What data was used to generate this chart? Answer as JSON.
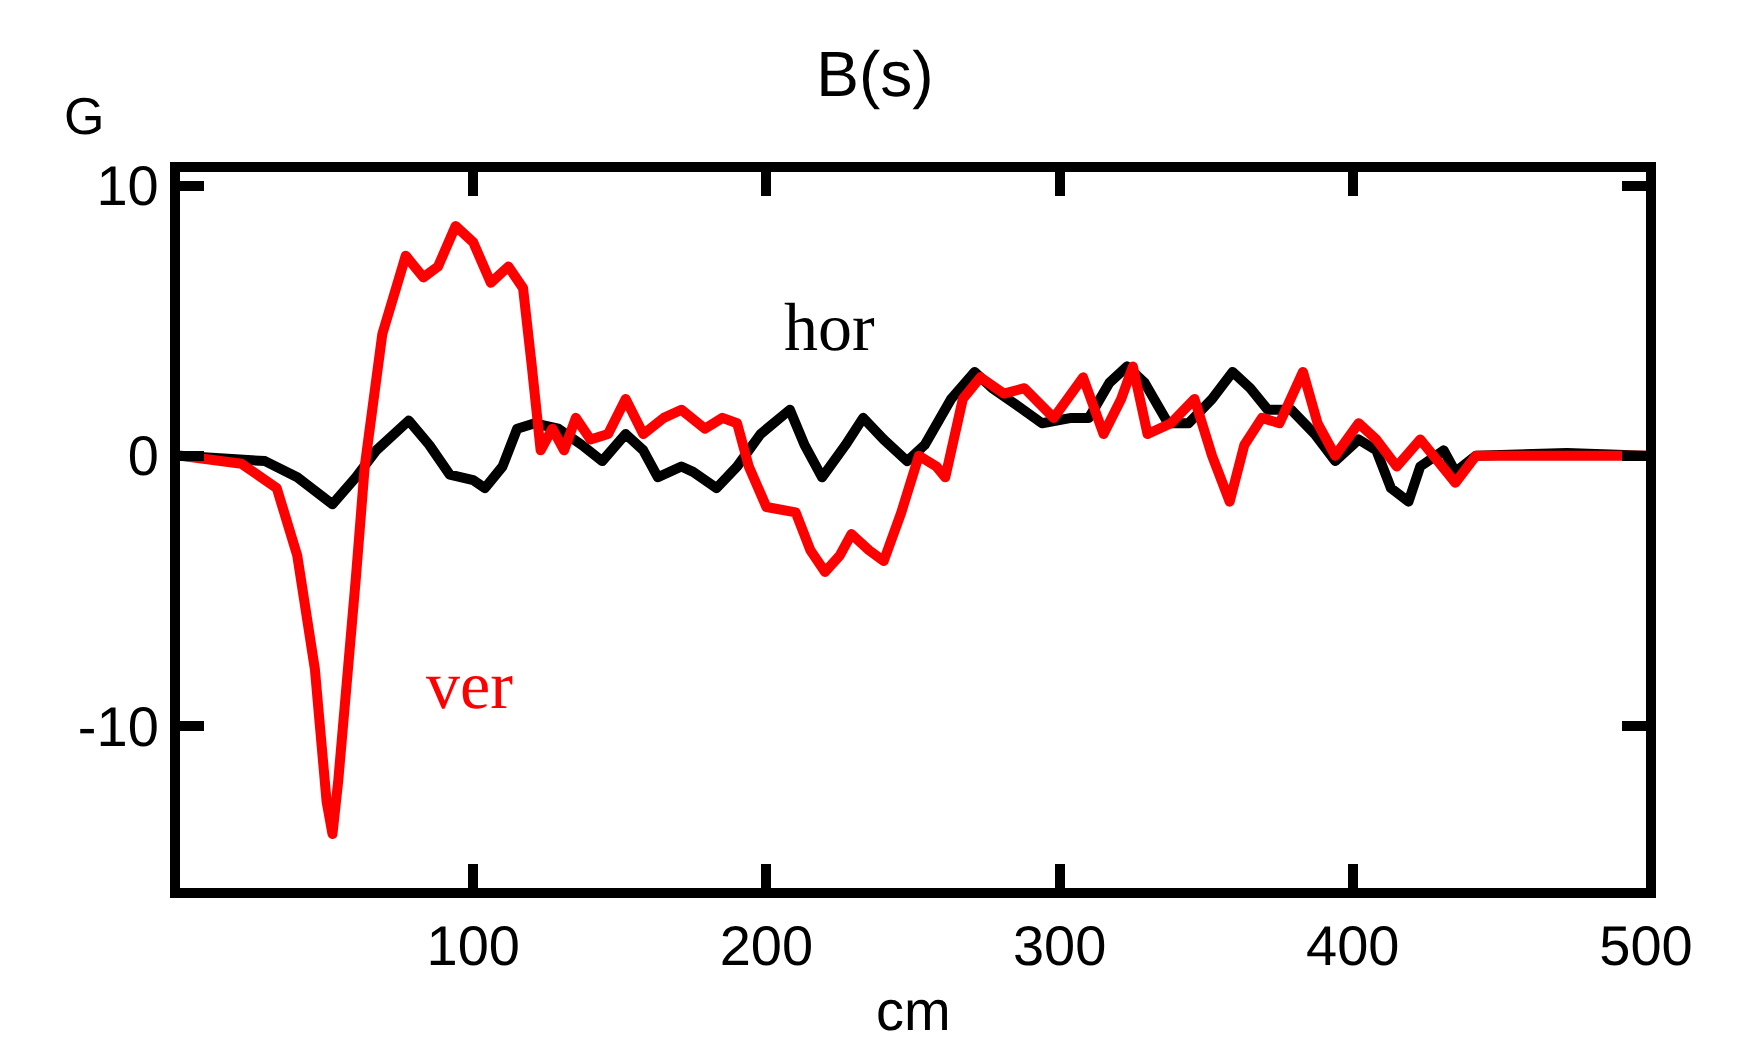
{
  "chart_data": {
    "type": "line",
    "title": "B(s)",
    "xlabel": "cm",
    "ylabel": "G",
    "xlim": [
      0,
      500
    ],
    "xticks": [
      100,
      200,
      300,
      400,
      500
    ],
    "ylim": [
      -16,
      10.5
    ],
    "yticks": [
      -10,
      0,
      10
    ],
    "legend": false,
    "marker": "none",
    "line_style": "solid",
    "series": [
      {
        "name": "hor",
        "color": "#000000",
        "x": [
          0,
          29,
          40,
          52,
          60,
          67,
          78,
          85,
          92,
          100,
          104,
          110,
          115,
          121,
          129,
          137,
          144,
          152,
          158,
          163,
          171,
          175,
          183,
          190,
          198,
          208,
          213,
          219,
          227,
          233,
          240,
          248,
          254,
          263,
          271,
          277,
          285,
          294,
          304,
          310,
          317,
          323,
          329,
          337,
          344,
          352,
          359,
          365,
          371,
          379,
          387,
          394,
          402,
          408,
          413,
          419,
          423,
          431,
          435,
          442,
          473,
          500
        ],
        "values": [
          0,
          -0.2,
          -0.8,
          -1.8,
          -0.8,
          0.2,
          1.3,
          0.4,
          -0.7,
          -0.9,
          -1.2,
          -0.4,
          1,
          1.2,
          1,
          0.4,
          -0.2,
          0.8,
          0.2,
          -0.8,
          -0.4,
          -0.6,
          -1.2,
          -0.4,
          0.8,
          1.7,
          0.4,
          -0.8,
          0.4,
          1.4,
          0.6,
          -0.2,
          0.4,
          2.1,
          3.1,
          2.5,
          1.9,
          1.2,
          1.4,
          1.4,
          2.7,
          3.3,
          2.7,
          1.2,
          1.2,
          2.1,
          3.1,
          2.5,
          1.7,
          1.7,
          0.8,
          -0.2,
          0.6,
          0.2,
          -1.2,
          -1.7,
          -0.4,
          0.2,
          -0.6,
          0,
          0.1,
          0
        ]
      },
      {
        "name": "ver",
        "color": "#ff0000",
        "x": [
          0,
          21,
          33,
          40,
          46,
          50,
          52,
          54,
          60,
          63,
          69,
          77,
          83,
          88,
          94,
          100,
          106,
          112,
          117,
          120,
          123,
          127,
          131,
          135,
          140,
          146,
          152,
          158,
          165,
          171,
          179,
          185,
          190,
          194,
          200,
          210,
          215,
          220,
          225,
          229,
          235,
          240,
          246,
          252,
          258,
          261,
          267,
          273,
          281,
          288,
          298,
          308,
          315,
          321,
          325,
          330,
          338,
          346,
          352,
          358,
          363,
          369,
          375,
          383,
          388,
          394,
          402,
          408,
          415,
          423,
          429,
          435,
          442,
          463,
          500
        ],
        "values": [
          0,
          -0.3,
          -1.2,
          -3.7,
          -7.9,
          -12.8,
          -14,
          -12,
          -4.5,
          -0.4,
          4.5,
          7.4,
          6.6,
          7,
          8.5,
          7.9,
          6.4,
          7,
          6.2,
          3.3,
          0.2,
          1,
          0.2,
          1.4,
          0.6,
          0.8,
          2.1,
          0.8,
          1.4,
          1.7,
          1,
          1.4,
          1.2,
          -0.4,
          -1.9,
          -2.1,
          -3.5,
          -4.3,
          -3.7,
          -2.9,
          -3.5,
          -3.9,
          -2.1,
          0,
          -0.4,
          -0.8,
          2.1,
          2.9,
          2.3,
          2.5,
          1.4,
          2.9,
          0.8,
          2.1,
          3.3,
          0.8,
          1.2,
          2.1,
          0,
          -1.7,
          0.4,
          1.4,
          1.2,
          3.1,
          1.2,
          0,
          1.2,
          0.6,
          -0.4,
          0.6,
          -0.2,
          -1,
          0,
          0,
          0
        ]
      }
    ]
  }
}
